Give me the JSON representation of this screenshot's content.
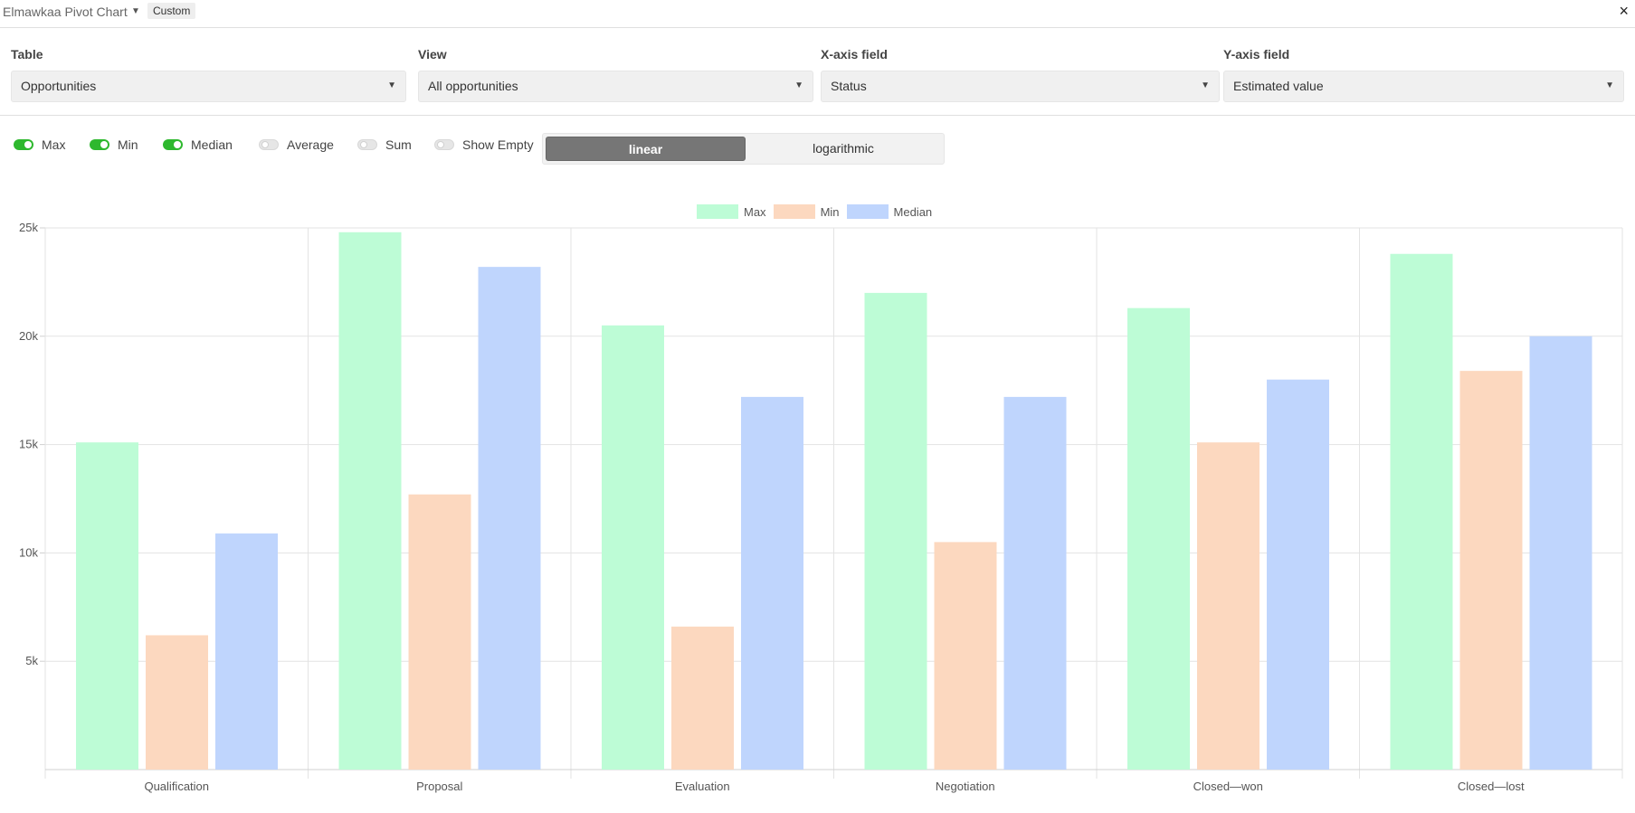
{
  "header": {
    "title": "Elmawkaa Pivot Chart",
    "badge": "Custom",
    "close_symbol": "×"
  },
  "fields": [
    {
      "label": "Table",
      "value": "Opportunities"
    },
    {
      "label": "View",
      "value": "All opportunities"
    },
    {
      "label": "X-axis field",
      "value": "Status"
    },
    {
      "label": "Y-axis field",
      "value": "Estimated value"
    }
  ],
  "options": {
    "toggles": [
      {
        "label": "Max",
        "on": true
      },
      {
        "label": "Min",
        "on": true
      },
      {
        "label": "Median",
        "on": true
      },
      {
        "label": "Average",
        "on": false
      },
      {
        "label": "Sum",
        "on": false
      },
      {
        "label": "Show Empty",
        "on": false
      }
    ],
    "scale": {
      "options": [
        "linear",
        "logarithmic"
      ],
      "selected": "linear"
    }
  },
  "colors": {
    "max": "#bdfcd6",
    "min": "#fcd8bf",
    "median": "#bfd5fd",
    "accent_toggle": "#2eb82e"
  },
  "chart_data": {
    "type": "bar",
    "categories": [
      "Qualification",
      "Proposal",
      "Evaluation",
      "Negotiation",
      "Closed—won",
      "Closed—lost"
    ],
    "series": [
      {
        "name": "Max",
        "color": "#bdfcd6",
        "values": [
          15100,
          24800,
          20500,
          22000,
          21300,
          23800
        ]
      },
      {
        "name": "Min",
        "color": "#fcd8bf",
        "values": [
          6200,
          12700,
          6600,
          10500,
          15100,
          18400
        ]
      },
      {
        "name": "Median",
        "color": "#bfd5fd",
        "values": [
          10900,
          23200,
          17200,
          17200,
          18000,
          20000
        ]
      }
    ],
    "ylim": [
      0,
      25000
    ],
    "yticks": [
      5000,
      10000,
      15000,
      20000,
      25000
    ],
    "ytick_labels": [
      "5k",
      "10k",
      "15k",
      "20k",
      "25k"
    ],
    "legend_position": "top-center",
    "grid": true
  }
}
